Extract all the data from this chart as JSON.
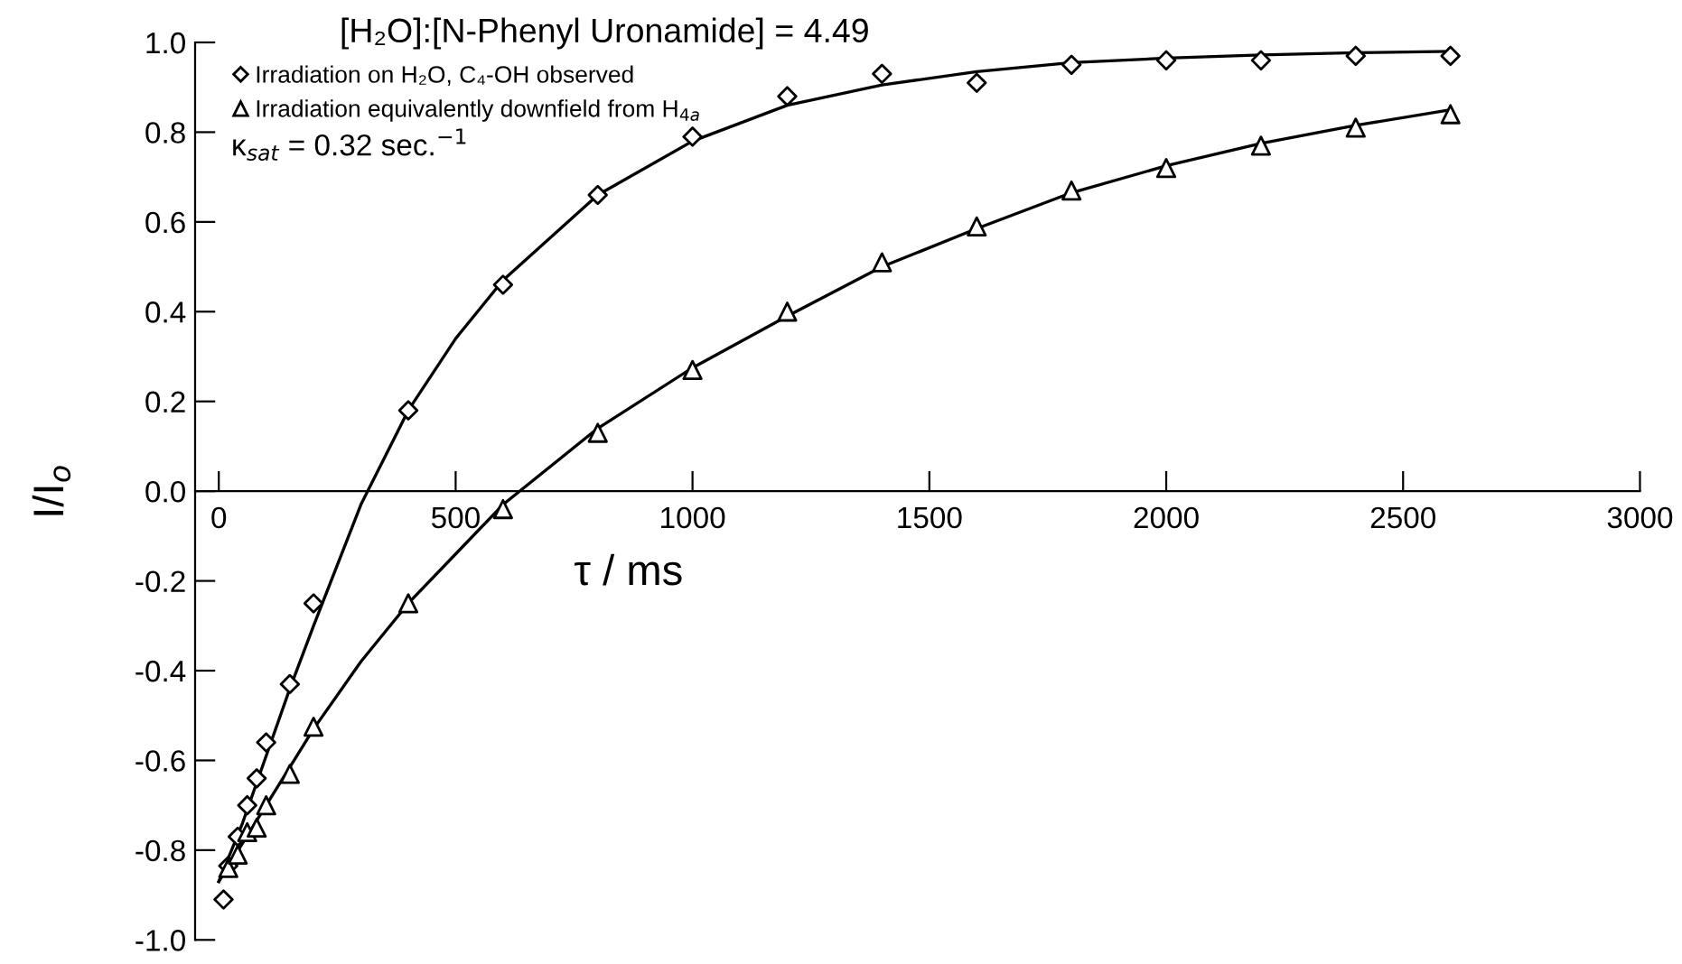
{
  "chart_data": {
    "type": "scatter",
    "title": "[H₂O]:[N-Phenyl Uronamide] = 4.49",
    "xlabel": "τ / ms",
    "ylabel": "I/I$_{o}$",
    "annotations": [
      "κ$_{sat}$ = 0.32 sec.$^{−1}$"
    ],
    "xlim": [
      -50,
      3000
    ],
    "xticks": [
      0,
      500,
      1000,
      1500,
      2000,
      2500,
      3000
    ],
    "ylim": [
      -1.0,
      1.0
    ],
    "yticks": [
      {
        "value": -1.0,
        "label": "-1.0"
      },
      {
        "value": -0.8,
        "label": "-0.8"
      },
      {
        "value": -0.6,
        "label": "-0.6"
      },
      {
        "value": -0.4,
        "label": "-0.4"
      },
      {
        "value": -0.2,
        "label": "-0.2"
      },
      {
        "value": 0.0,
        "label": "0.0"
      },
      {
        "value": 0.2,
        "label": "0.2"
      },
      {
        "value": 0.4,
        "label": "0.4"
      },
      {
        "value": 0.6,
        "label": "0.6"
      },
      {
        "value": 0.8,
        "label": "0.8"
      },
      {
        "value": 1.0,
        "label": "1.0"
      }
    ],
    "legend": "top left",
    "series": [
      {
        "name": "Irradiation on H₂O, C₄-OH observed",
        "marker": "diamond",
        "color": "#000000",
        "x": [
          10,
          20,
          40,
          60,
          80,
          100,
          150,
          200,
          400,
          600,
          800,
          1000,
          1200,
          1400,
          1600,
          1800,
          2000,
          2200,
          2400,
          2600
        ],
        "values": [
          -0.91,
          -0.835,
          -0.77,
          -0.7,
          -0.64,
          -0.56,
          -0.43,
          -0.25,
          0.18,
          0.46,
          0.66,
          0.79,
          0.88,
          0.93,
          0.91,
          0.95,
          0.96,
          0.96,
          0.97,
          0.97
        ]
      },
      {
        "name": "Irradiation equivalently downfield from H$_{4a}$",
        "marker": "triangle",
        "color": "#000000",
        "x": [
          20,
          40,
          60,
          80,
          100,
          150,
          200,
          400,
          600,
          800,
          1000,
          1200,
          1400,
          1600,
          1800,
          2000,
          2200,
          2400,
          2600
        ],
        "values": [
          -0.84,
          -0.81,
          -0.76,
          -0.75,
          -0.7,
          -0.63,
          -0.525,
          -0.25,
          -0.04,
          0.13,
          0.27,
          0.4,
          0.51,
          0.59,
          0.67,
          0.72,
          0.77,
          0.81,
          0.84
        ]
      },
      {
        "type": "line",
        "marker": "none",
        "color": "#000000",
        "x": [
          0,
          50,
          100,
          150,
          200,
          300,
          400,
          500,
          600,
          800,
          1000,
          1200,
          1400,
          1600,
          1800,
          2000,
          2200,
          2400,
          2600
        ],
        "values": [
          -0.87,
          -0.74,
          -0.59,
          -0.44,
          -0.3,
          -0.03,
          0.18,
          0.34,
          0.47,
          0.66,
          0.78,
          0.86,
          0.905,
          0.935,
          0.955,
          0.965,
          0.972,
          0.977,
          0.98
        ]
      },
      {
        "type": "line",
        "marker": "none",
        "color": "#000000",
        "x": [
          0,
          100,
          200,
          300,
          400,
          500,
          600,
          800,
          1000,
          1200,
          1400,
          1600,
          1800,
          2000,
          2200,
          2400,
          2600
        ],
        "values": [
          -0.87,
          -0.7,
          -0.53,
          -0.38,
          -0.25,
          -0.14,
          -0.03,
          0.14,
          0.275,
          0.39,
          0.5,
          0.585,
          0.665,
          0.725,
          0.775,
          0.815,
          0.85
        ]
      }
    ]
  }
}
